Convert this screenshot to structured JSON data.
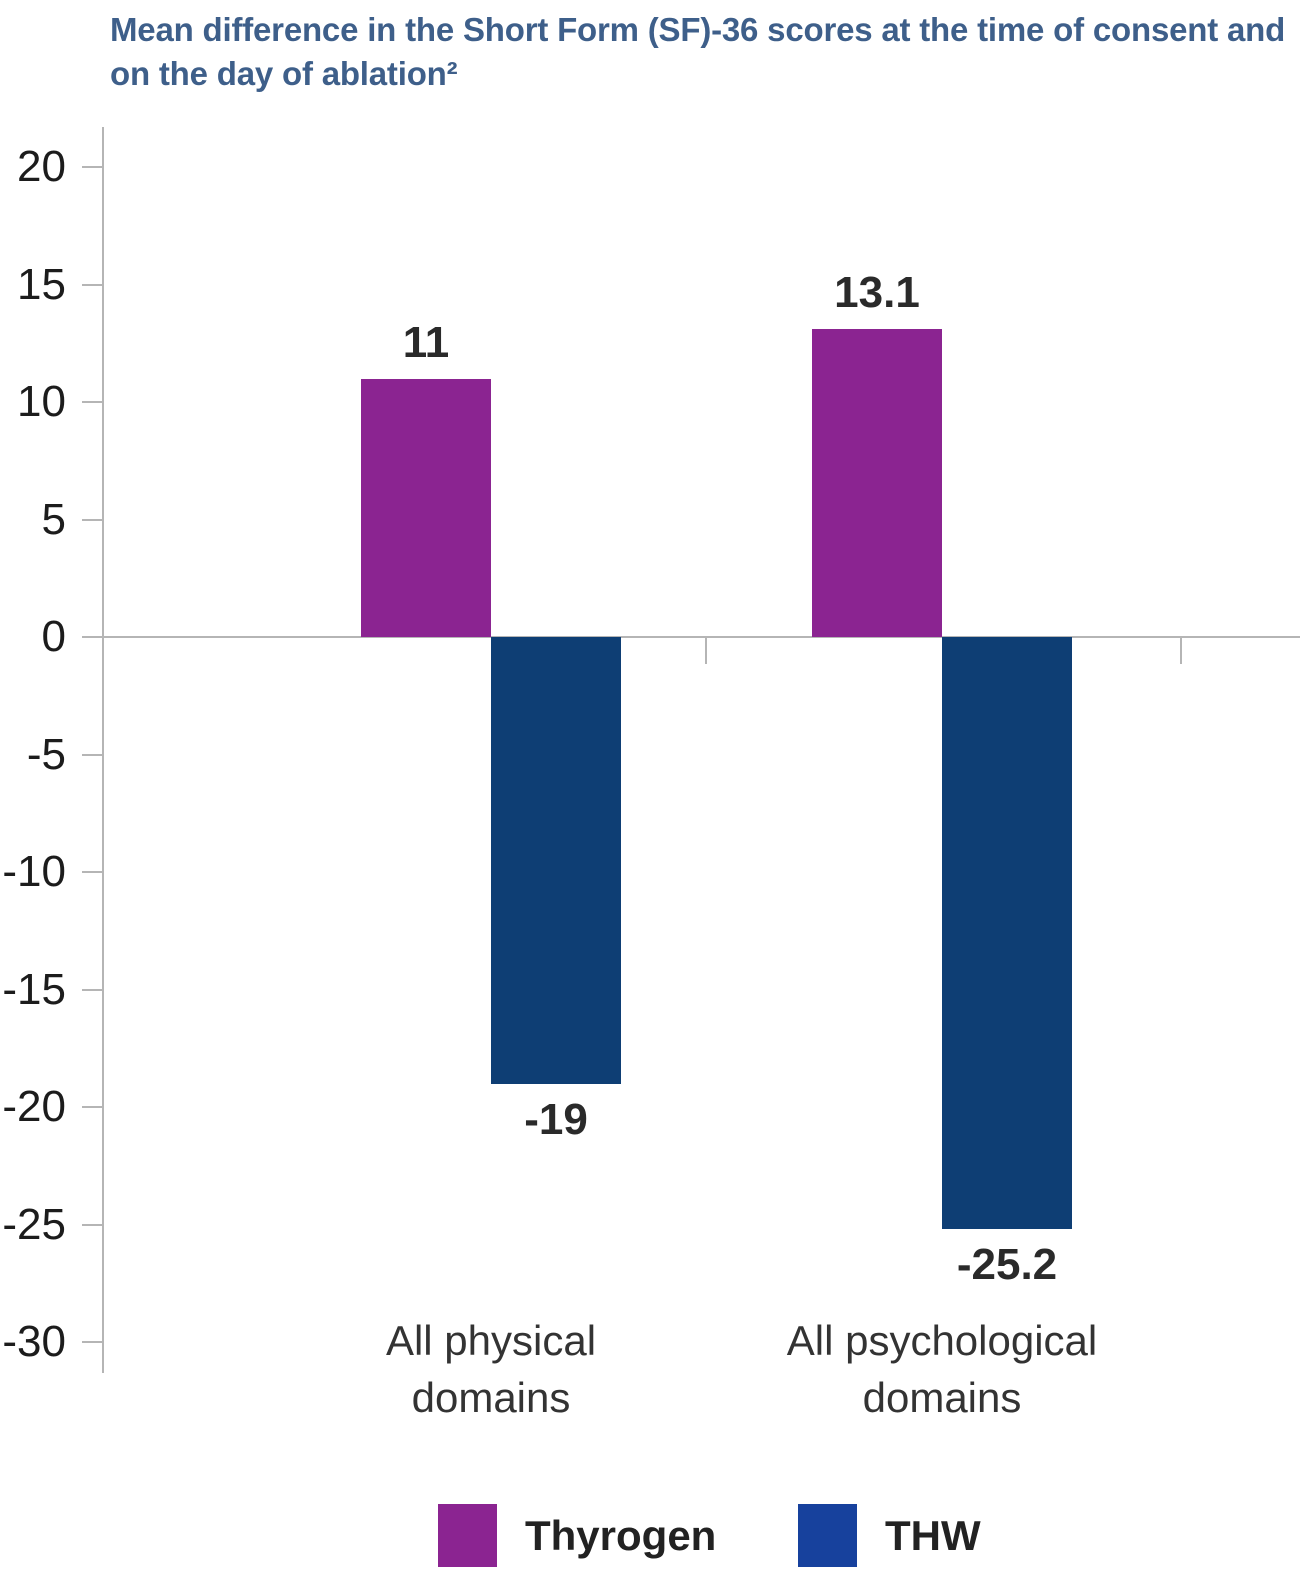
{
  "title": "Mean difference in the Short Form (SF)-36 scores at the time of consent and on the day of ablation²",
  "colors": {
    "title": "#3E5F8A",
    "axis": "#B5B5B5",
    "tick_label": "#1C1C1C",
    "value_label": "#2A2A2A",
    "category_label": "#333333",
    "legend_label": "#222222",
    "thyrogen": "#8B2491",
    "thw_bar": "#0E3E74",
    "thw_legend": "#17419D"
  },
  "chart_data": {
    "type": "bar",
    "title": "Mean difference in the Short Form (SF)-36 scores at the time of consent and on the day of ablation²",
    "categories": [
      "All physical domains",
      "All psychological domains"
    ],
    "series": [
      {
        "name": "Thyrogen",
        "color": "#8B2491",
        "values": [
          11,
          13.1
        ],
        "labels": [
          "11",
          "13.1"
        ]
      },
      {
        "name": "THW",
        "color": "#0E3E74",
        "legend_color": "#17419D",
        "values": [
          -19,
          -25.2
        ],
        "labels": [
          "-19",
          "-25.2"
        ]
      }
    ],
    "yticks": [
      20,
      15,
      10,
      5,
      0,
      -5,
      -10,
      -15,
      -20,
      -25,
      -30
    ],
    "ylim": [
      -30,
      20
    ],
    "xlabel": "",
    "ylabel": "",
    "grid": false,
    "zero_line": true,
    "legend_position": "bottom",
    "legend": [
      "Thyrogen",
      "THW"
    ]
  }
}
